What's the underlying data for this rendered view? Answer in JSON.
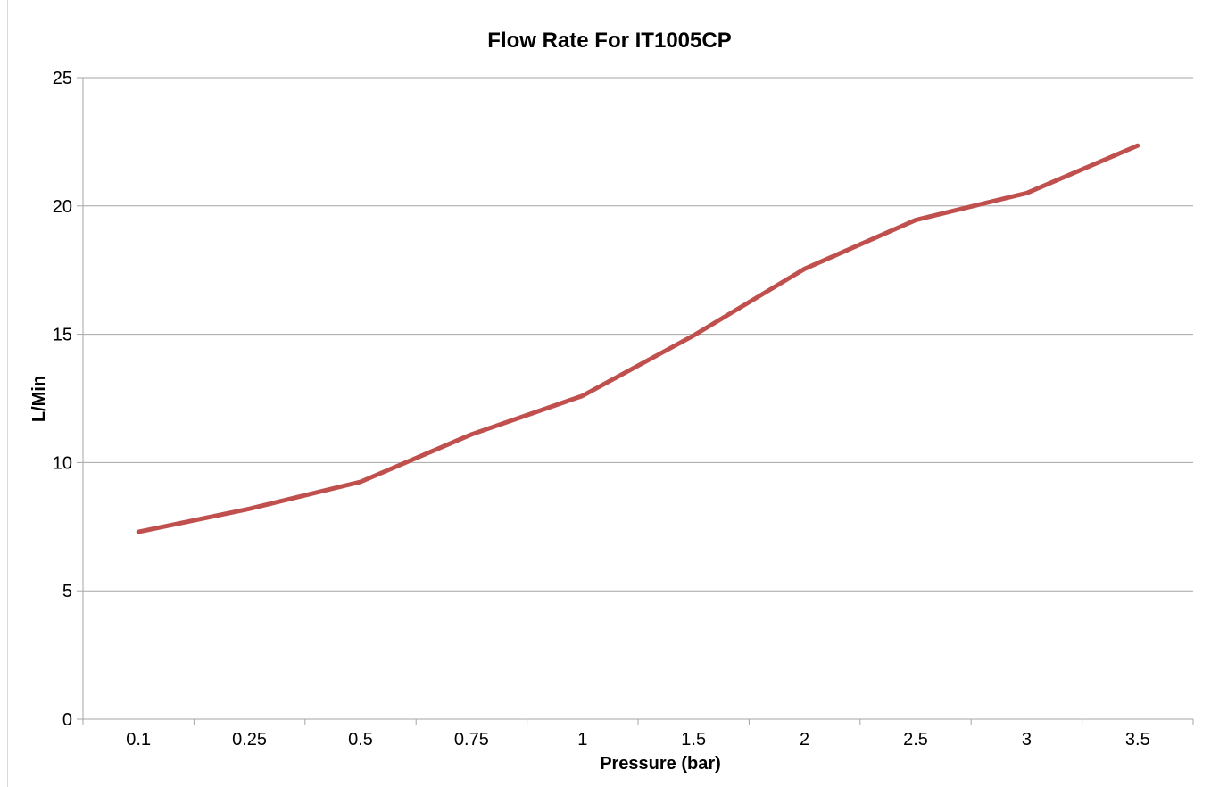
{
  "chart_data": {
    "type": "line",
    "title": "Flow Rate For IT1005CP",
    "xlabel": "Pressure (bar)",
    "ylabel": "L/Min",
    "categories": [
      "0.1",
      "0.25",
      "0.5",
      "0.75",
      "1",
      "1.5",
      "2",
      "2.5",
      "3",
      "3.5"
    ],
    "series": [
      {
        "values": [
          7.3,
          8.2,
          9.25,
          11.1,
          12.6,
          14.95,
          17.55,
          19.45,
          20.5,
          22.35
        ],
        "color": "#c0504d"
      }
    ],
    "ylim": [
      0,
      25
    ],
    "yticks": [
      "0",
      "5",
      "10",
      "15",
      "20",
      "25"
    ],
    "grid": "horizontal",
    "legend": "none"
  }
}
